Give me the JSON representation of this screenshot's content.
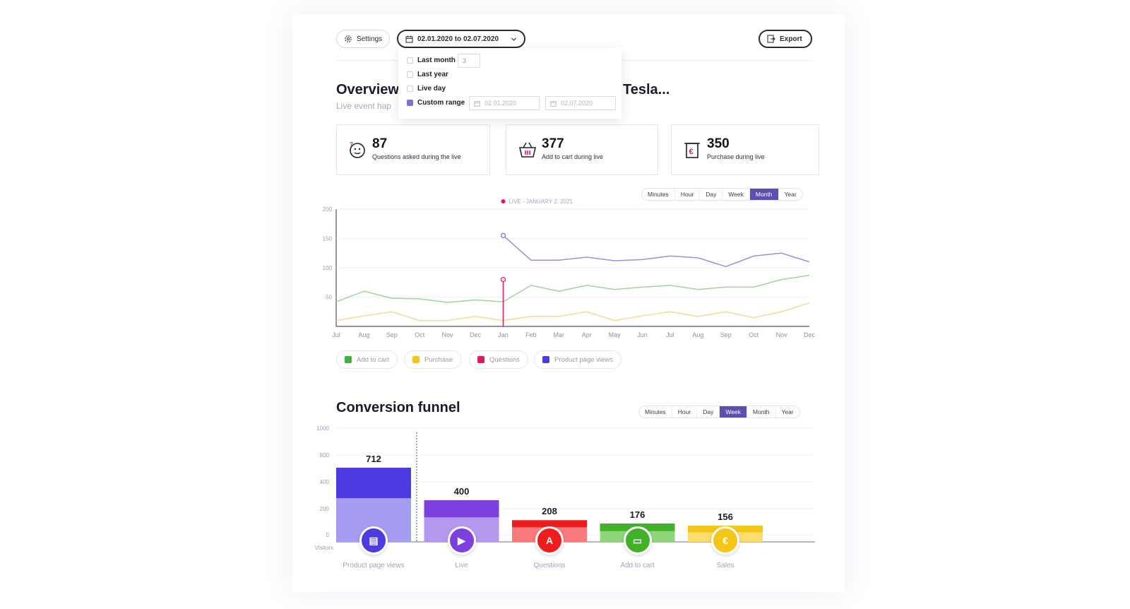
{
  "toolbar": {
    "settings_label": "Settings",
    "date_range_label": "02.01.2020 to 02.07.2020",
    "export_label": "Export"
  },
  "date_dropdown": {
    "options": [
      {
        "label": "Last month",
        "checked": false,
        "value": "3"
      },
      {
        "label": "Last year",
        "checked": false
      },
      {
        "label": "Live day",
        "checked": false
      },
      {
        "label": "Custom range",
        "checked": true
      }
    ],
    "range_from": "02.01.2020",
    "range_to": "02.07.2020"
  },
  "overview": {
    "title_left": "Overview",
    "title_right": "Tesla...",
    "subtitle": "Live event hap"
  },
  "stats": [
    {
      "value": "87",
      "label": "Questions asked during the live",
      "icon": "questions-face-icon"
    },
    {
      "value": "377",
      "label": "Add to cart during live",
      "icon": "basket-icon"
    },
    {
      "value": "350",
      "label": "Purchase during live",
      "icon": "euro-receipt-icon"
    }
  ],
  "timeline_tabs": {
    "items": [
      "Minutes",
      "Hour",
      "Day",
      "Week",
      "Month",
      "Year"
    ],
    "active": "Month"
  },
  "live_marker": "LIVE - JANUARY 2, 2021",
  "colors": {
    "accent": "#5b4fb0",
    "add_to_cart": "#3cb33c",
    "purchase": "#f5c518",
    "questions": "#e8175d",
    "product_page_views": "#4b3be0",
    "line_views": "#9a90dd",
    "line_cart": "#9ed49a",
    "line_purchase": "#f3dc90"
  },
  "chart_data": [
    {
      "type": "line",
      "x": [
        "Jul",
        "Aug",
        "Sep",
        "Oct",
        "Nov",
        "Dec",
        "Jan",
        "Feb",
        "Mar",
        "Apr",
        "May",
        "Jun",
        "Jul",
        "Aug",
        "Sep",
        "Oct",
        "Nov",
        "Dec"
      ],
      "yticks": [
        50,
        100,
        150,
        200
      ],
      "ylim": [
        0,
        200
      ],
      "series": [
        {
          "name": "Add to cart",
          "values": [
            42,
            60,
            48,
            47,
            41,
            45,
            42,
            70,
            60,
            70,
            63,
            67,
            70,
            63,
            67,
            67,
            80,
            87
          ]
        },
        {
          "name": "Purchase",
          "values": [
            10,
            18,
            25,
            10,
            10,
            17,
            10,
            17,
            17,
            25,
            10,
            18,
            25,
            17,
            25,
            15,
            25,
            40
          ]
        },
        {
          "name": "Product page views",
          "values": [
            null,
            null,
            null,
            null,
            null,
            null,
            155,
            113,
            113,
            118,
            112,
            114,
            120,
            117,
            102,
            120,
            125,
            110
          ]
        }
      ],
      "markers": [
        {
          "series": "Product page views",
          "x": "Jan",
          "y": 155
        },
        {
          "series": "Questions",
          "x": "Jan",
          "y": 80
        }
      ],
      "legend": [
        "Add to cart",
        "Purchase",
        "Questions",
        "Product page views"
      ],
      "grid": true
    },
    {
      "type": "bar",
      "title": "Conversion funnel",
      "ylabel": "Visitors",
      "yticks": [
        "1000",
        "800",
        "400",
        "200",
        "0"
      ],
      "categories": [
        "Product page views",
        "Live",
        "Questions",
        "Add to cart",
        "Sales"
      ],
      "values": [
        712,
        400,
        208,
        176,
        156
      ],
      "colors": [
        "#4b3be0",
        "#7e3fe0",
        "#ee1d1d",
        "#43b02a",
        "#f5c518"
      ],
      "light_colors": [
        "#a49cf0",
        "#b497ee",
        "#f87a7a",
        "#8fd57c",
        "#fbdc6c"
      ],
      "icons": [
        "document-icon",
        "video-icon",
        "question-bubble-icon",
        "basket-icon",
        "euro-icon"
      ]
    }
  ],
  "funnel_tabs": {
    "items": [
      "Minutes",
      "Hour",
      "Day",
      "Week",
      "Month",
      "Year"
    ],
    "active": "Week"
  }
}
